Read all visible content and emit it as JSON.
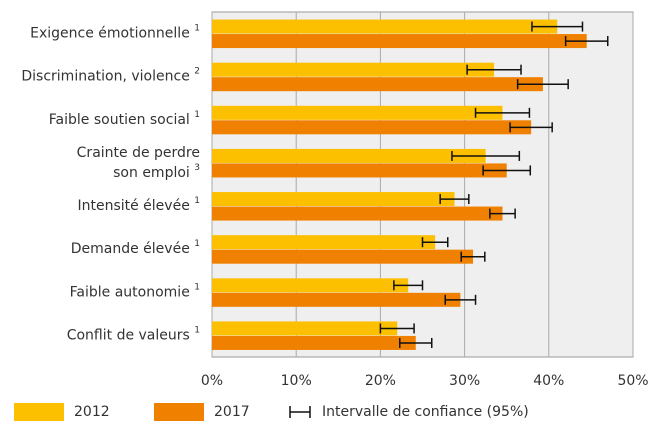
{
  "chart_data": {
    "type": "bar",
    "orientation": "horizontal",
    "categories": [
      [
        "Exigence émotionnelle"
      ],
      [
        "Discrimination, violence"
      ],
      [
        "Faible soutien social"
      ],
      [
        "Crainte de perdre",
        "son emploi"
      ],
      [
        "Intensité élevée"
      ],
      [
        "Demande élevée"
      ],
      [
        "Faible autonomie"
      ],
      [
        "Conflit de valeurs"
      ]
    ],
    "notes": [
      "1",
      "2",
      "1",
      "3",
      "1",
      "1",
      "1",
      "1"
    ],
    "series": [
      {
        "name": "2012",
        "color": "#fcc000",
        "values": [
          41,
          33.5,
          34.5,
          32.5,
          28.8,
          26.5,
          23.3,
          22
        ],
        "errors": [
          3,
          3.2,
          3.2,
          4,
          1.7,
          1.5,
          1.7,
          2
        ]
      },
      {
        "name": "2017",
        "color": "#f08000",
        "values": [
          44.5,
          39.3,
          37.9,
          35,
          34.5,
          31,
          29.5,
          24.2
        ],
        "errors": [
          2.5,
          3,
          2.5,
          2.8,
          1.5,
          1.4,
          1.8,
          1.9
        ]
      }
    ],
    "error_legend": "Intervalle de confiance (95%)",
    "xlim": [
      0,
      50
    ],
    "xticks": [
      {
        "value": 0,
        "label": "0%"
      },
      {
        "value": 10,
        "label": "10%"
      },
      {
        "value": 20,
        "label": "20%"
      },
      {
        "value": 30,
        "label": "30%"
      },
      {
        "value": 40,
        "label": "40%"
      },
      {
        "value": 50,
        "label": "50%"
      }
    ],
    "grid": true
  }
}
